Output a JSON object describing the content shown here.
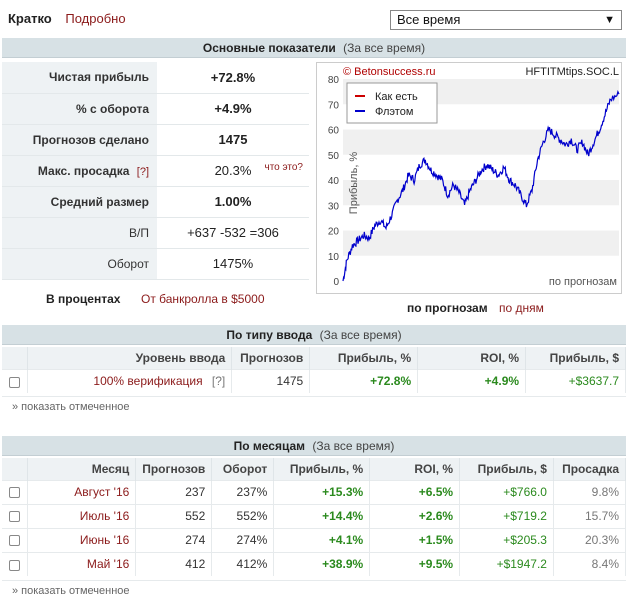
{
  "nav": {
    "brief": "Кратко",
    "detailed": "Подробно"
  },
  "period": {
    "selected": "Все время"
  },
  "main_section": {
    "title": "Основные показатели",
    "sub": "(За все время)"
  },
  "stats": {
    "net_profit_label": "Чистая прибыль",
    "net_profit": "+72.8%",
    "turnover_pct_label": "% с оборота",
    "turnover_pct": "+4.9%",
    "picks_label": "Прогнозов сделано",
    "picks": "1475",
    "drawdown_label": "Макс. просадка",
    "drawdown_hint": "[?]",
    "drawdown": "20.3%",
    "whats_this": "что это?",
    "avg_size_label": "Средний размер",
    "avg_size": "1.00%",
    "wl_label": "В/П",
    "wl": "+637 -532 =306",
    "turnover_label": "Оборот",
    "turnover": "1475%"
  },
  "percent": {
    "in_percent": "В процентах",
    "from_bankroll": "От банкролла в $5000"
  },
  "chart_toggle": {
    "by_picks": "по прогнозам",
    "by_days": "по дням"
  },
  "chart_data": {
    "type": "line",
    "copyright": "© Betonsuccess.ru",
    "tipster": "HFTITMtips.SOC.L",
    "ylabel": "Прибыль, %",
    "xlabel": "по прогнозам",
    "ylim": [
      0,
      80
    ],
    "yticks": [
      "0",
      "10",
      "20",
      "30",
      "40",
      "50",
      "60",
      "70",
      "80"
    ],
    "legend": [
      "Как есть",
      "Флэтом"
    ],
    "legend_position": "top-left",
    "series": [
      {
        "name": "Как есть",
        "color": "#cc0000",
        "values": []
      },
      {
        "name": "Флэтом",
        "color": "#0000cc",
        "x": [
          0,
          20,
          50,
          80,
          110,
          140,
          170,
          200,
          230,
          260,
          290,
          320,
          350,
          380,
          410,
          440,
          470,
          500,
          530,
          560,
          590,
          620,
          650,
          680,
          710,
          740,
          770,
          800,
          830,
          860,
          890,
          920,
          950,
          980,
          1010,
          1040,
          1070,
          1100,
          1130,
          1160,
          1190,
          1220,
          1250,
          1280,
          1310,
          1340,
          1370,
          1400,
          1430,
          1475
        ],
        "values": [
          0,
          8,
          14,
          16,
          18,
          17,
          22,
          24,
          21,
          26,
          32,
          36,
          42,
          40,
          46,
          48,
          44,
          42,
          40,
          34,
          38,
          35,
          30,
          36,
          40,
          44,
          46,
          44,
          42,
          45,
          40,
          38,
          34,
          30,
          36,
          48,
          55,
          60,
          58,
          56,
          54,
          56,
          52,
          55,
          50,
          55,
          60,
          66,
          72,
          74
        ]
      }
    ]
  },
  "entry_section": {
    "title": "По типу ввода",
    "sub": "(За все время)"
  },
  "entry_table": {
    "headers": [
      "Уровень ввода",
      "Прогнозов",
      "Прибыль, %",
      "ROI, %",
      "Прибыль, $"
    ],
    "rows": [
      {
        "level": "100% верификация",
        "hint": "[?]",
        "picks": "1475",
        "profit_pct": "+72.8%",
        "roi": "+4.9%",
        "profit_usd": "+$3637.7"
      }
    ],
    "show_selected": "» показать отмеченное"
  },
  "month_section": {
    "title": "По месяцам",
    "sub": "(За все время)"
  },
  "month_table": {
    "headers": [
      "Месяц",
      "Прогнозов",
      "Оборот",
      "Прибыль, %",
      "ROI, %",
      "Прибыль, $",
      "Просадка"
    ],
    "rows": [
      {
        "month": "Август '16",
        "picks": "237",
        "turnover": "237%",
        "profit_pct": "+15.3%",
        "roi": "+6.5%",
        "profit_usd": "+$766.0",
        "drawdown": "9.8%"
      },
      {
        "month": "Июль '16",
        "picks": "552",
        "turnover": "552%",
        "profit_pct": "+14.4%",
        "roi": "+2.6%",
        "profit_usd": "+$719.2",
        "drawdown": "15.7%"
      },
      {
        "month": "Июнь '16",
        "picks": "274",
        "turnover": "274%",
        "profit_pct": "+4.1%",
        "roi": "+1.5%",
        "profit_usd": "+$205.3",
        "drawdown": "20.3%"
      },
      {
        "month": "Май '16",
        "picks": "412",
        "turnover": "412%",
        "profit_pct": "+38.9%",
        "roi": "+9.5%",
        "profit_usd": "+$1947.2",
        "drawdown": "8.4%"
      }
    ],
    "show_selected": "» показать отмеченное"
  }
}
